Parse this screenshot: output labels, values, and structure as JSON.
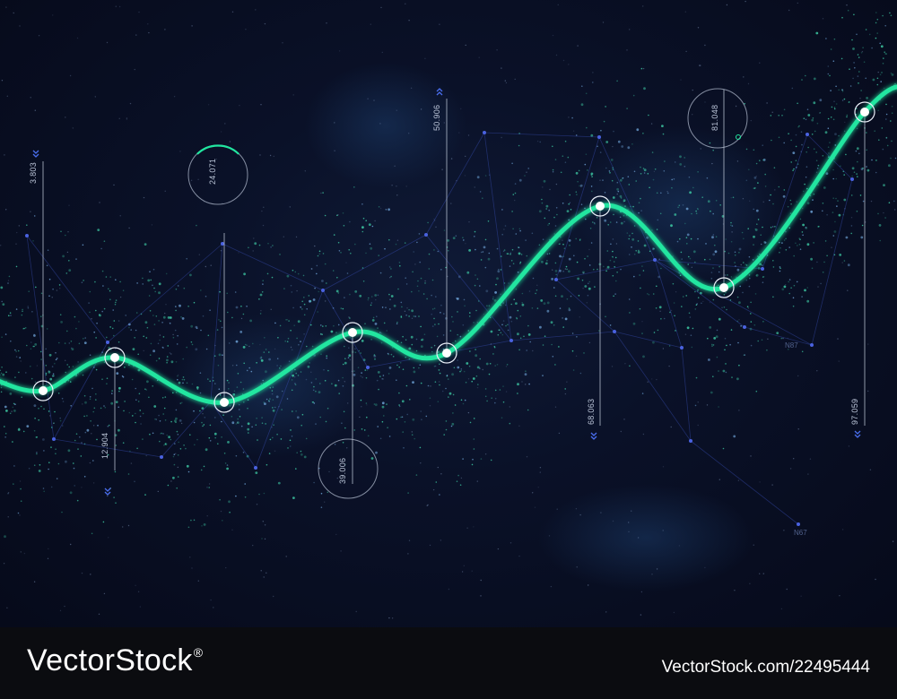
{
  "chart_data": {
    "type": "line",
    "series": [
      {
        "values": [
          3.803,
          12.904,
          24.071,
          39.006,
          50.906,
          68.063,
          81.048,
          97.059
        ]
      }
    ],
    "point_labels": [
      "3.803",
      "12.904",
      "24.071",
      "39.006",
      "50.906",
      "68.063",
      "81.048",
      "97.059"
    ],
    "annotations": [
      "N87",
      "N67"
    ],
    "grid": false,
    "legend": "none"
  },
  "colors": {
    "background": "#070b1d",
    "line": "#21e6a0",
    "particles": "#3fd0a8",
    "network": "#3a4fb8",
    "marker": "#ffffff",
    "footer": "#0b0c10"
  },
  "footer": {
    "brand": "VectorStock",
    "registered": "®",
    "image_id": "VectorStock.com/22495444"
  }
}
